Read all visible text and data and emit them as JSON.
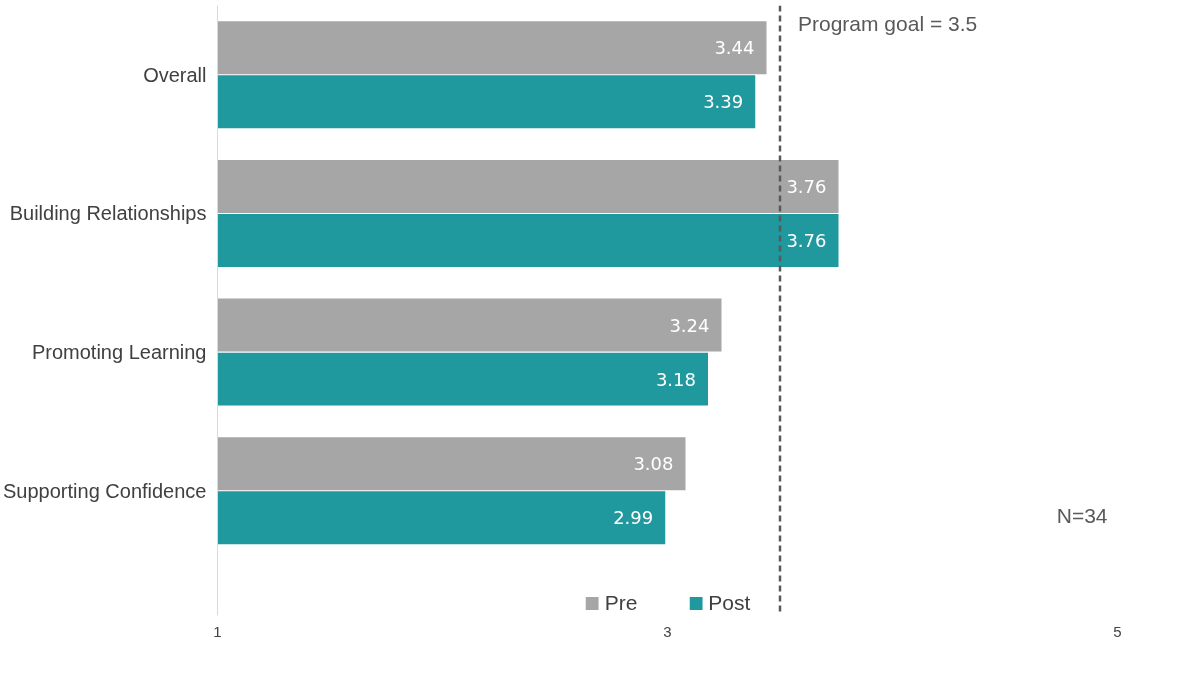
{
  "chart_data": {
    "type": "bar",
    "orientation": "horizontal",
    "categories": [
      "Overall",
      "Building Relationships",
      "Promoting Learning",
      "Supporting Confidence"
    ],
    "series": [
      {
        "name": "Pre",
        "color": "#a6a6a6",
        "values": [
          3.44,
          3.76,
          3.24,
          3.08
        ]
      },
      {
        "name": "Post",
        "color": "#1f989e",
        "values": [
          3.39,
          3.76,
          3.18,
          2.99
        ]
      }
    ],
    "xlim": [
      1,
      5
    ],
    "xticks": [
      1,
      3,
      5
    ],
    "data_labels": true,
    "grid": false,
    "legend": "bottom",
    "ref_lines": [
      {
        "axis": "x",
        "value": 3.5,
        "label": "Program goal = 3.5",
        "color": "#595959",
        "line_style": "dashed"
      }
    ],
    "annotations": [
      "N=34"
    ]
  }
}
